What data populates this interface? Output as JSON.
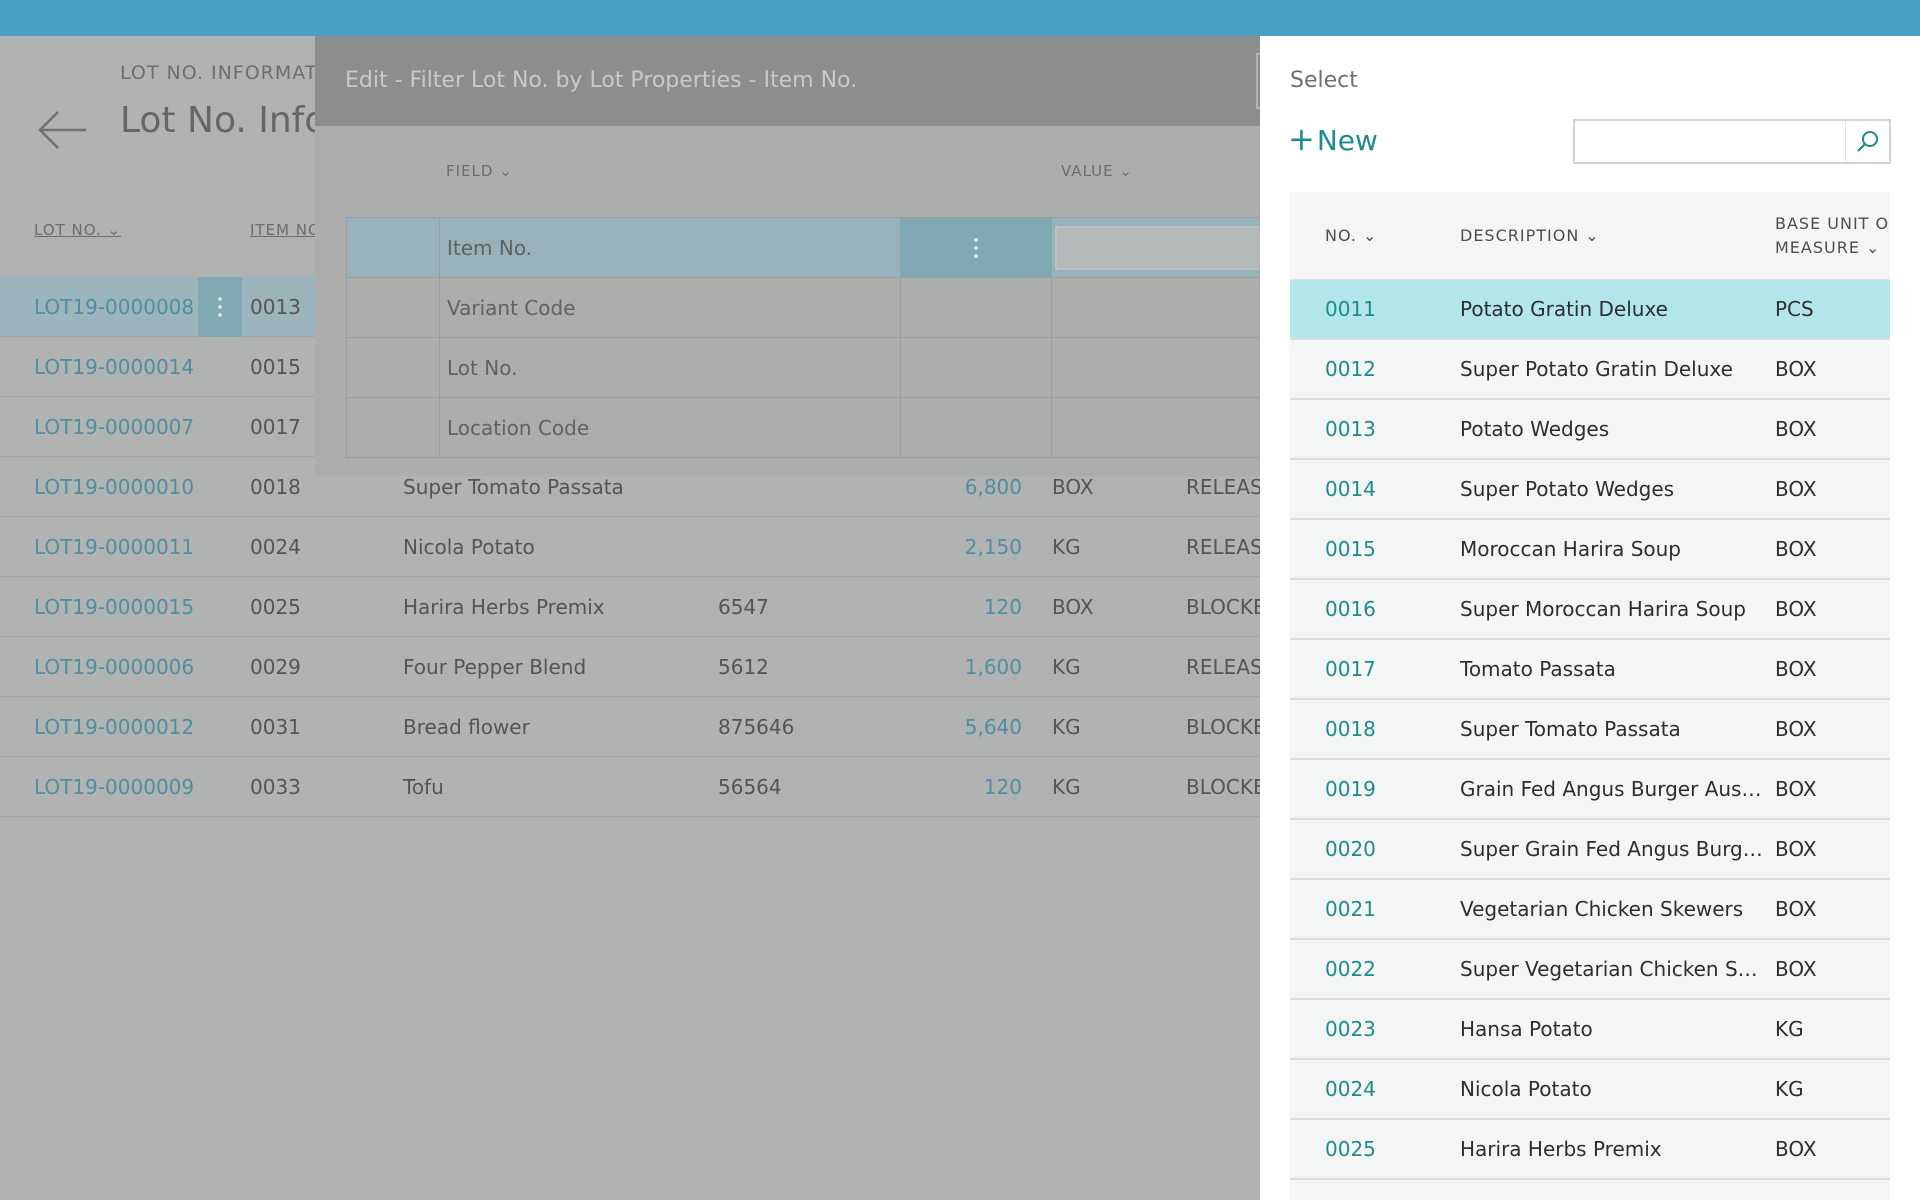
{
  "background_page": {
    "caption": "LOT NO. INFORMATIO",
    "title": "Lot No. Infor",
    "columns": {
      "lot_no": "LOT NO.",
      "item_no": "ITEM NO"
    },
    "rows": [
      {
        "lot": "LOT19-0000008",
        "item": "0013",
        "desc": "",
        "variant": "",
        "qty": "",
        "uom": "",
        "status": "",
        "selected": true
      },
      {
        "lot": "LOT19-0000014",
        "item": "0015",
        "desc": "",
        "variant": "",
        "qty": "",
        "uom": "",
        "status": ""
      },
      {
        "lot": "LOT19-0000007",
        "item": "0017",
        "desc": "",
        "variant": "",
        "qty": "",
        "uom": "",
        "status": ""
      },
      {
        "lot": "LOT19-0000010",
        "item": "0018",
        "desc": "Super Tomato Passata",
        "variant": "",
        "qty": "6,800",
        "uom": "BOX",
        "status": "RELEASE"
      },
      {
        "lot": "LOT19-0000011",
        "item": "0024",
        "desc": "Nicola Potato",
        "variant": "",
        "qty": "2,150",
        "uom": "KG",
        "status": "RELEASE"
      },
      {
        "lot": "LOT19-0000015",
        "item": "0025",
        "desc": "Harira Herbs Premix",
        "variant": "6547",
        "qty": "120",
        "uom": "BOX",
        "status": "BLOCKE"
      },
      {
        "lot": "LOT19-0000006",
        "item": "0029",
        "desc": "Four Pepper Blend",
        "variant": "5612",
        "qty": "1,600",
        "uom": "KG",
        "status": "RELEASE"
      },
      {
        "lot": "LOT19-0000012",
        "item": "0031",
        "desc": "Bread flower",
        "variant": "875646",
        "qty": "5,640",
        "uom": "KG",
        "status": "BLOCKE"
      },
      {
        "lot": "LOT19-0000009",
        "item": "0033",
        "desc": "Tofu",
        "variant": "56564",
        "qty": "120",
        "uom": "KG",
        "status": "BLOCKE"
      }
    ]
  },
  "modal": {
    "title": "Edit - Filter Lot No. by Lot Properties - Item No.",
    "columns": {
      "field": "FIELD",
      "value": "VALUE"
    },
    "rows": [
      {
        "field": "Item No.",
        "selected": true
      },
      {
        "field": "Variant Code"
      },
      {
        "field": "Lot No."
      },
      {
        "field": "Location Code"
      }
    ]
  },
  "panel": {
    "title": "Select",
    "new_label": "New",
    "search": {
      "value": "",
      "placeholder": ""
    },
    "columns": {
      "no": "NO.",
      "description": "DESCRIPTION",
      "uom_line1": "BASE UNIT OF",
      "uom_line2": "MEASURE"
    },
    "rows": [
      {
        "no": "0011",
        "description": "Potato Gratin Deluxe",
        "uom": "PCS",
        "selected": true
      },
      {
        "no": "0012",
        "description": "Super Potato Gratin Deluxe",
        "uom": "BOX"
      },
      {
        "no": "0013",
        "description": "Potato Wedges",
        "uom": "BOX"
      },
      {
        "no": "0014",
        "description": "Super Potato Wedges",
        "uom": "BOX"
      },
      {
        "no": "0015",
        "description": "Moroccan Harira Soup",
        "uom": "BOX"
      },
      {
        "no": "0016",
        "description": "Super Moroccan Harira Soup",
        "uom": "BOX"
      },
      {
        "no": "0017",
        "description": "Tomato Passata",
        "uom": "BOX"
      },
      {
        "no": "0018",
        "description": "Super Tomato Passata",
        "uom": "BOX"
      },
      {
        "no": "0019",
        "description": "Grain Fed Angus Burger Austral...",
        "uom": "BOX"
      },
      {
        "no": "0020",
        "description": "Super Grain Fed Angus Burger ...",
        "uom": "BOX"
      },
      {
        "no": "0021",
        "description": "Vegetarian Chicken Skewers",
        "uom": "BOX"
      },
      {
        "no": "0022",
        "description": "Super Vegetarian Chicken Skew...",
        "uom": "BOX"
      },
      {
        "no": "0023",
        "description": "Hansa Potato",
        "uom": "KG"
      },
      {
        "no": "0024",
        "description": "Nicola Potato",
        "uom": "KG"
      },
      {
        "no": "0025",
        "description": "Harira Herbs Premix",
        "uom": "BOX"
      }
    ]
  },
  "colors": {
    "topbar": "#4aa0c2",
    "accent": "#1f8b90",
    "selected_row": "#b2e6ea"
  }
}
